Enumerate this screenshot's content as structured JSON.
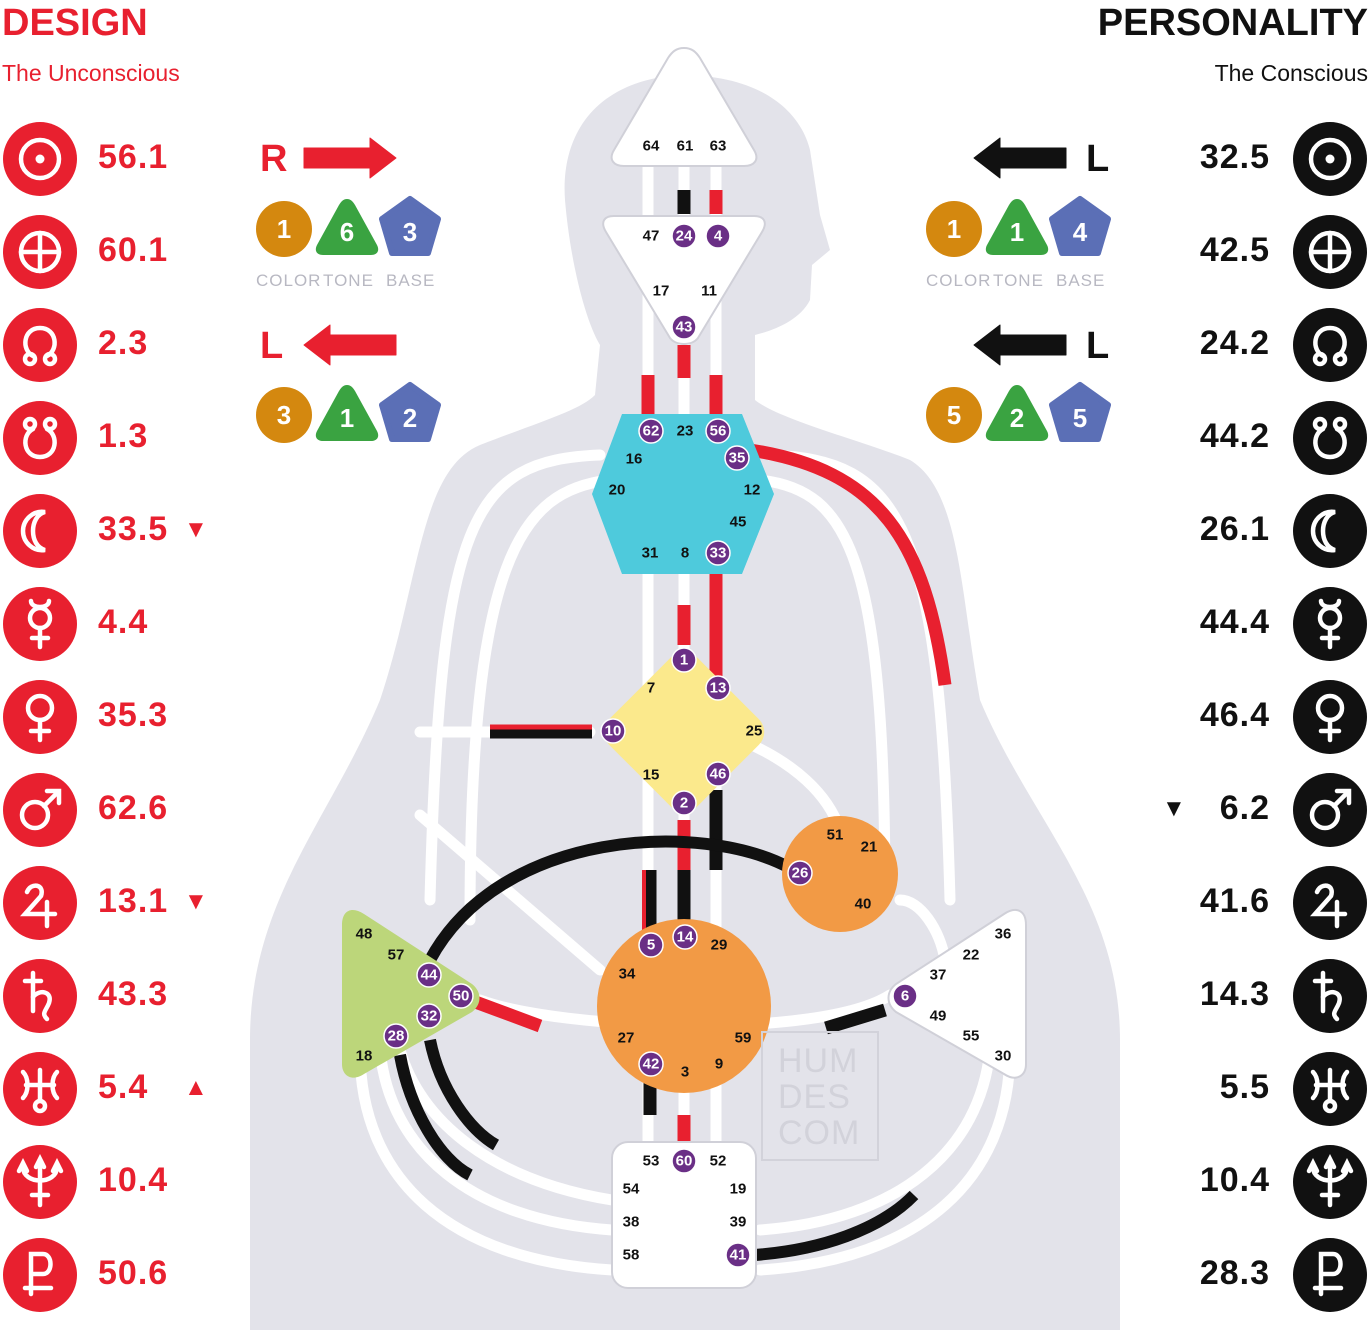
{
  "design": {
    "title": "DESIGN",
    "subtitle": "The Unconscious",
    "color": "#e8202f",
    "planets": [
      {
        "icon": "sun-icon",
        "value": "56.1",
        "arrow": ""
      },
      {
        "icon": "earth-icon",
        "value": "60.1",
        "arrow": ""
      },
      {
        "icon": "north-node-icon",
        "value": "2.3",
        "arrow": ""
      },
      {
        "icon": "south-node-icon",
        "value": "1.3",
        "arrow": ""
      },
      {
        "icon": "moon-icon",
        "value": "33.5",
        "arrow": "▼"
      },
      {
        "icon": "mercury-icon",
        "value": "4.4",
        "arrow": ""
      },
      {
        "icon": "venus-icon",
        "value": "35.3",
        "arrow": ""
      },
      {
        "icon": "mars-icon",
        "value": "62.6",
        "arrow": ""
      },
      {
        "icon": "jupiter-icon",
        "value": "13.1",
        "arrow": "▼"
      },
      {
        "icon": "saturn-icon",
        "value": "43.3",
        "arrow": ""
      },
      {
        "icon": "uranus-icon",
        "value": "5.4",
        "arrow": "▲"
      },
      {
        "icon": "neptune-icon",
        "value": "10.4",
        "arrow": ""
      },
      {
        "icon": "pluto-icon",
        "value": "50.6",
        "arrow": ""
      }
    ],
    "variables": [
      {
        "direction": "R",
        "color": "1",
        "tone": "6",
        "base": "3"
      },
      {
        "direction": "L",
        "color": "3",
        "tone": "1",
        "base": "2"
      }
    ]
  },
  "personality": {
    "title": "PERSONALITY",
    "subtitle": "The Conscious",
    "color": "#111111",
    "planets": [
      {
        "icon": "sun-icon",
        "value": "32.5",
        "arrow": ""
      },
      {
        "icon": "earth-icon",
        "value": "42.5",
        "arrow": ""
      },
      {
        "icon": "north-node-icon",
        "value": "24.2",
        "arrow": ""
      },
      {
        "icon": "south-node-icon",
        "value": "44.2",
        "arrow": ""
      },
      {
        "icon": "moon-icon",
        "value": "26.1",
        "arrow": ""
      },
      {
        "icon": "mercury-icon",
        "value": "44.4",
        "arrow": ""
      },
      {
        "icon": "venus-icon",
        "value": "46.4",
        "arrow": ""
      },
      {
        "icon": "mars-icon",
        "value": "6.2",
        "arrow": "▼"
      },
      {
        "icon": "jupiter-icon",
        "value": "41.6",
        "arrow": ""
      },
      {
        "icon": "saturn-icon",
        "value": "14.3",
        "arrow": ""
      },
      {
        "icon": "uranus-icon",
        "value": "5.5",
        "arrow": ""
      },
      {
        "icon": "neptune-icon",
        "value": "10.4",
        "arrow": ""
      },
      {
        "icon": "pluto-icon",
        "value": "28.3",
        "arrow": ""
      }
    ],
    "variables": [
      {
        "direction": "L",
        "color": "1",
        "tone": "1",
        "base": "4"
      },
      {
        "direction": "L",
        "color": "5",
        "tone": "2",
        "base": "5"
      }
    ]
  },
  "captions": {
    "color": "COLOR",
    "tone": "TONE",
    "base": "BASE"
  },
  "watermark": [
    "HUM",
    "DES",
    "COM"
  ],
  "colors": {
    "design_red": "#e8202f",
    "personality_black": "#111111",
    "body_silhouette": "#e3e3ea",
    "activated_gate": "#6a2f86",
    "badge_color": "#d4880f",
    "badge_tone": "#3aa341",
    "badge_base": "#5b6fb6",
    "throat_center": "#4ecadc",
    "g_center": "#fbe98c",
    "ego_center": "#f29a45",
    "sacral_center": "#f29a45",
    "spleen_center": "#bcd67a"
  },
  "centers": {
    "head": {
      "gates": [
        "64",
        "61",
        "63"
      ],
      "active": []
    },
    "ajna": {
      "gates": [
        "47",
        "24",
        "4",
        "17",
        "11",
        "43"
      ],
      "active": [
        "24",
        "4",
        "43"
      ]
    },
    "throat": {
      "gates": [
        "62",
        "23",
        "56",
        "16",
        "35",
        "20",
        "12",
        "45",
        "31",
        "8",
        "33"
      ],
      "active": [
        "62",
        "56",
        "35",
        "33"
      ]
    },
    "g": {
      "gates": [
        "1",
        "7",
        "13",
        "10",
        "25",
        "15",
        "46",
        "2"
      ],
      "active": [
        "1",
        "13",
        "10",
        "46",
        "2"
      ]
    },
    "ego": {
      "gates": [
        "51",
        "21",
        "26",
        "40"
      ],
      "active": [
        "26"
      ]
    },
    "spleen": {
      "gates": [
        "48",
        "57",
        "44",
        "50",
        "32",
        "28",
        "18"
      ],
      "active": [
        "44",
        "50",
        "32",
        "28"
      ]
    },
    "sacral": {
      "gates": [
        "5",
        "14",
        "29",
        "34",
        "27",
        "59",
        "42",
        "3",
        "9"
      ],
      "active": [
        "5",
        "14",
        "42"
      ]
    },
    "solar_plexus": {
      "gates": [
        "36",
        "22",
        "37",
        "6",
        "49",
        "55",
        "30"
      ],
      "active": [
        "6"
      ]
    },
    "root": {
      "gates": [
        "53",
        "60",
        "52",
        "54",
        "19",
        "38",
        "39",
        "58",
        "41"
      ],
      "active": [
        "60",
        "41"
      ]
    }
  }
}
